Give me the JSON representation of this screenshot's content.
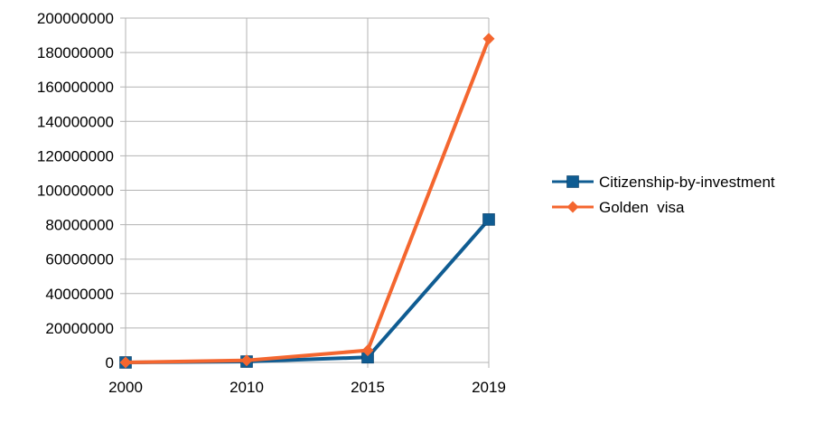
{
  "chart_data": {
    "type": "line",
    "categories": [
      "2000",
      "2010",
      "2015",
      "2019"
    ],
    "series": [
      {
        "name": "Citizenship-by-investment",
        "values": [
          0,
          500000,
          3000000,
          83000000
        ],
        "color": "#0f5c92",
        "marker": "square"
      },
      {
        "name": "Golden  visa",
        "values": [
          0,
          1200000,
          7000000,
          188000000
        ],
        "color": "#f4662f",
        "marker": "diamond"
      }
    ],
    "ylim": [
      0,
      200000000
    ],
    "yticks": [
      "0",
      "20000000",
      "40000000",
      "60000000",
      "80000000",
      "100000000",
      "120000000",
      "140000000",
      "160000000",
      "180000000",
      "200000000"
    ],
    "grid": true,
    "legend_position": "right",
    "title": "",
    "xlabel": "",
    "ylabel": ""
  }
}
